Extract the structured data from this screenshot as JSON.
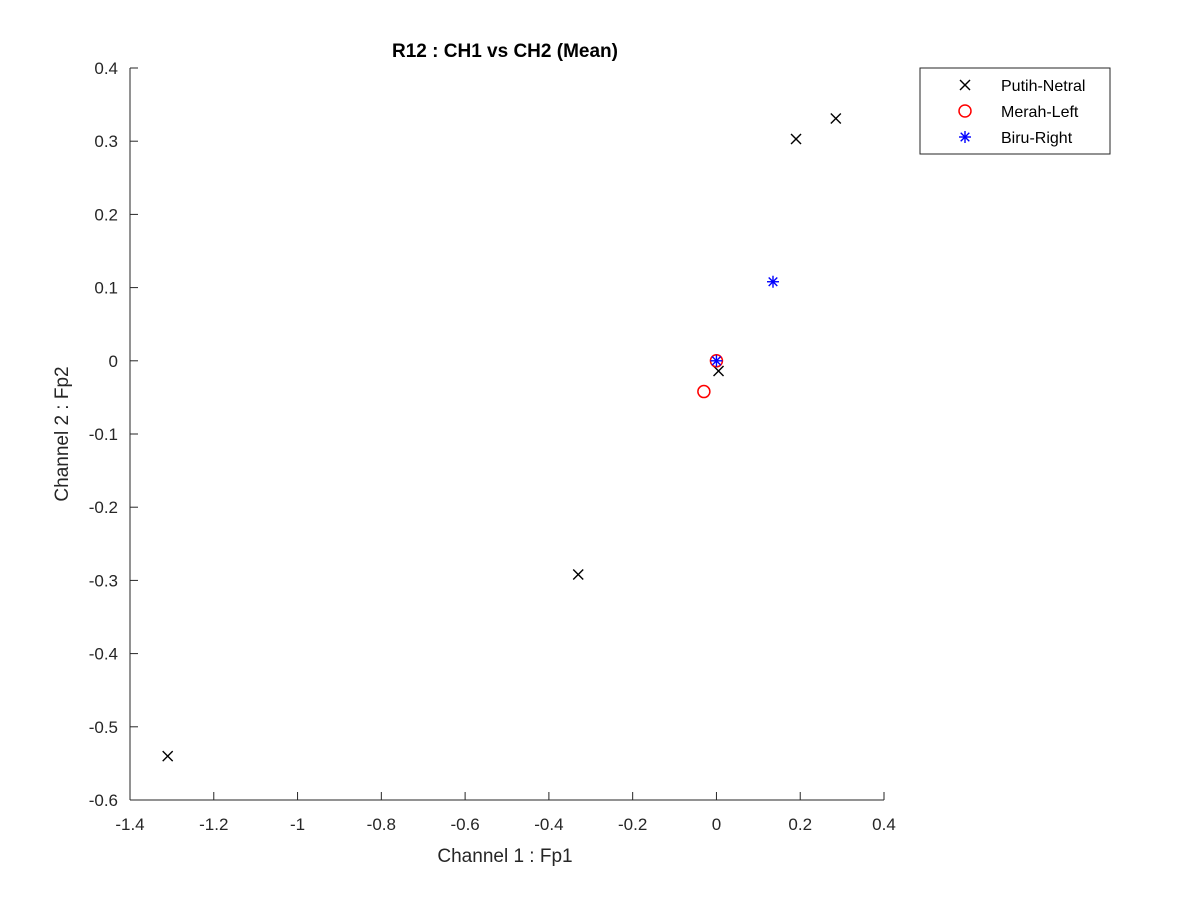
{
  "chart_data": {
    "type": "scatter",
    "title": "R12 : CH1 vs CH2 (Mean)",
    "xlabel": "Channel 1 : Fp1",
    "ylabel": "Channel 2 : Fp2",
    "xlim": [
      -1.4,
      0.4
    ],
    "ylim": [
      -0.6,
      0.4
    ],
    "xticks": [
      -1.4,
      -1.2,
      -1,
      -0.8,
      -0.6,
      -0.4,
      -0.2,
      0,
      0.2,
      0.4
    ],
    "xtick_labels": [
      "-1.4",
      "-1.2",
      "-1",
      "-0.8",
      "-0.6",
      "-0.4",
      "-0.2",
      "0",
      "0.2",
      "0.4"
    ],
    "yticks": [
      -0.6,
      -0.5,
      -0.4,
      -0.3,
      -0.2,
      -0.1,
      0,
      0.1,
      0.2,
      0.3,
      0.4
    ],
    "ytick_labels": [
      "-0.6",
      "-0.5",
      "-0.4",
      "-0.3",
      "-0.2",
      "-0.1",
      "0",
      "0.1",
      "0.2",
      "0.3",
      "0.4"
    ],
    "grid": false,
    "legend_position": "top-right-outside",
    "series": [
      {
        "name": "Putih-Netral",
        "marker": "x",
        "color": "#000000",
        "points": [
          [
            -1.31,
            -0.54
          ],
          [
            -0.33,
            -0.292
          ],
          [
            0.005,
            -0.014
          ],
          [
            0.19,
            0.303
          ],
          [
            0.285,
            0.331
          ]
        ]
      },
      {
        "name": "Merah-Left",
        "marker": "o",
        "color": "#ff0000",
        "points": [
          [
            -0.03,
            -0.042
          ],
          [
            0.0,
            0.0
          ]
        ]
      },
      {
        "name": "Biru-Right",
        "marker": "*",
        "color": "#0000ff",
        "points": [
          [
            0.0,
            0.0
          ],
          [
            0.135,
            0.108
          ]
        ]
      }
    ]
  }
}
